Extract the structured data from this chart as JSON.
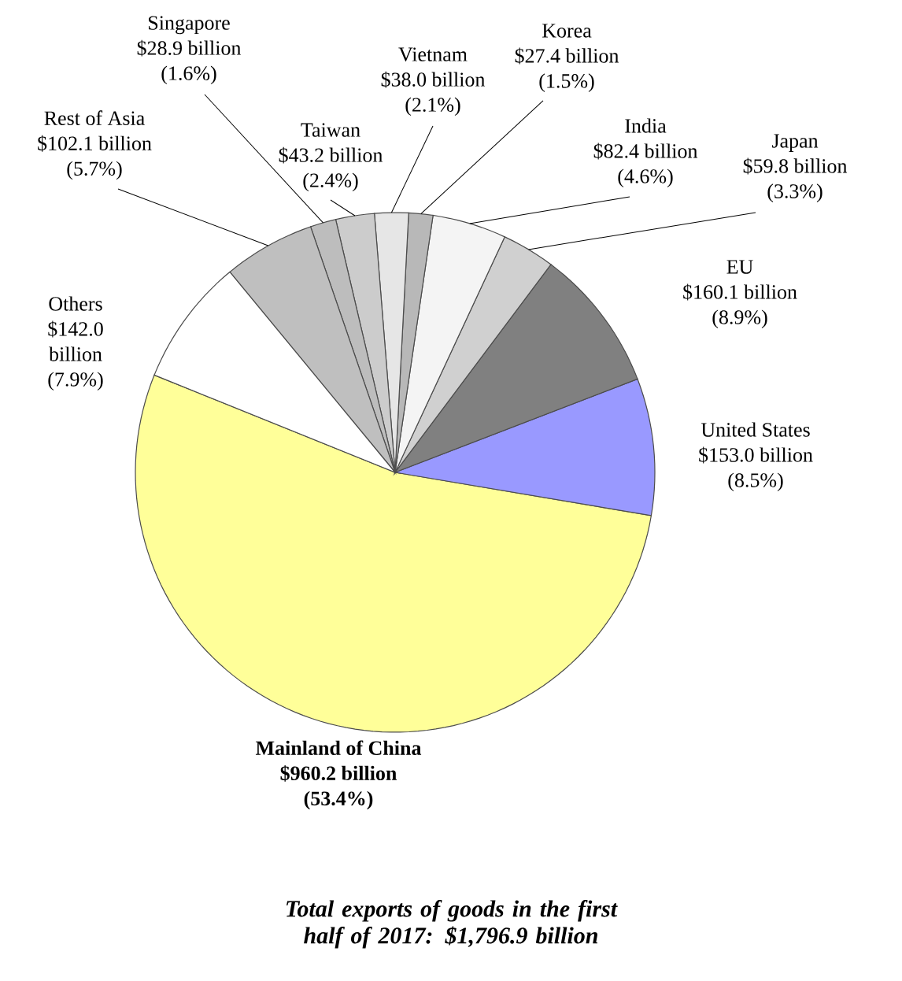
{
  "chart_data": {
    "type": "pie",
    "title": "Total exports of goods in the first half of 2017: $1,796.9 billion",
    "categories": [
      "Mainland of China",
      "United States",
      "EU",
      "Japan",
      "India",
      "Korea",
      "Vietnam",
      "Taiwan",
      "Singapore",
      "Rest of Asia",
      "Others"
    ],
    "values": [
      53.4,
      8.5,
      8.9,
      3.3,
      4.6,
      1.5,
      2.1,
      2.4,
      1.6,
      5.7,
      7.9
    ],
    "value_labels": [
      "$960.2 billion (53.4%)",
      "$153.0 billion (8.5%)",
      "$160.1 billion (8.9%)",
      "$59.8 billion (3.3%)",
      "$82.4 billion (4.6%)",
      "$27.4 billion (1.5%)",
      "$38.0 billion (2.1%)",
      "$43.2 billion (2.4%)",
      "$28.9 billion (1.6%)",
      "$102.1 billion (5.7%)",
      "$142.0 billion (7.9%)"
    ],
    "colors": [
      "#ffff99",
      "#9999ff",
      "#808080",
      "#d0d0d0",
      "#f4f4f4",
      "#b8b8b8",
      "#e6e6e6",
      "#cccccc",
      "#bdbdbd",
      "#bfbfbf",
      "#ffffff"
    ]
  }
}
